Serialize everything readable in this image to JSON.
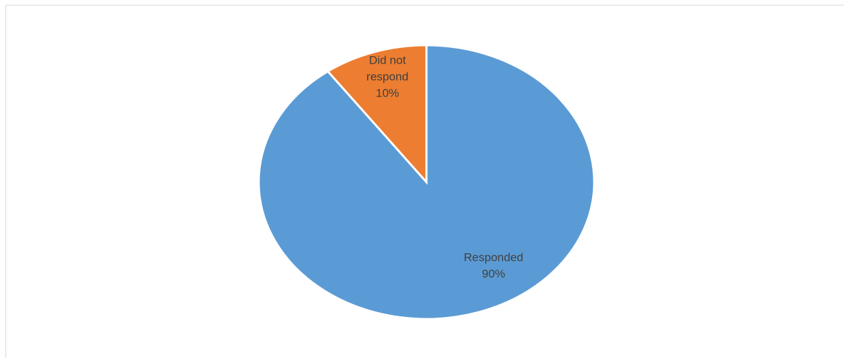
{
  "chart_data": {
    "type": "pie",
    "slices": [
      {
        "label_lines": [
          "Responded"
        ],
        "percent_text": "90%",
        "value": 90,
        "color": "#5b9bd5"
      },
      {
        "label_lines": [
          "Did not",
          "respond"
        ],
        "percent_text": "10%",
        "value": 10,
        "color": "#ed7d31"
      }
    ],
    "start_angle_deg": 0,
    "direction": "clockwise",
    "legend": "none"
  }
}
